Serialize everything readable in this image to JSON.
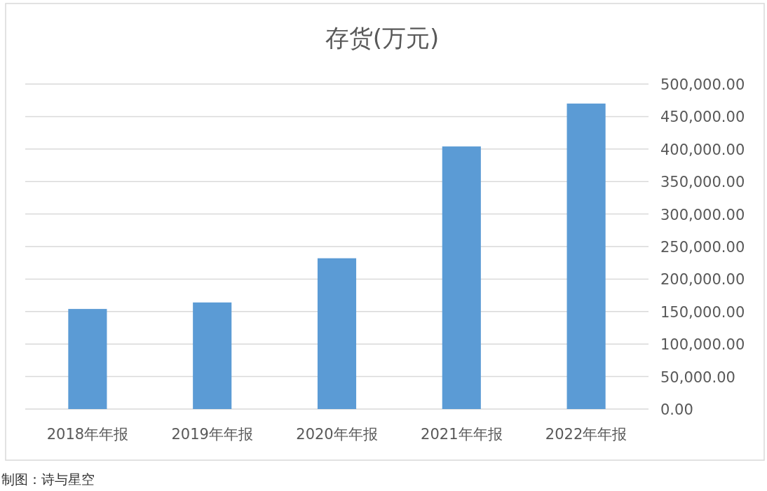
{
  "chart_data": {
    "type": "bar",
    "title": "存货(万元)",
    "categories": [
      "2018年年报",
      "2019年年报",
      "2020年年报",
      "2021年年报",
      "2022年年报"
    ],
    "values": [
      154000,
      164000,
      232000,
      404000,
      470000
    ],
    "color": "#5b9bd5",
    "ylim": [
      0,
      500000
    ],
    "yticks": [
      {
        "value": 0,
        "label": "0.00"
      },
      {
        "value": 50000,
        "label": "50,000.00"
      },
      {
        "value": 100000,
        "label": "100,000.00"
      },
      {
        "value": 150000,
        "label": "150,000.00"
      },
      {
        "value": 200000,
        "label": "200,000.00"
      },
      {
        "value": 250000,
        "label": "250,000.00"
      },
      {
        "value": 300000,
        "label": "300,000.00"
      },
      {
        "value": 350000,
        "label": "350,000.00"
      },
      {
        "value": 400000,
        "label": "400,000.00"
      },
      {
        "value": 450000,
        "label": "450,000.00"
      },
      {
        "value": 500000,
        "label": "500,000.00"
      }
    ],
    "grid": "y",
    "annotations": [
      "制图：诗与星空"
    ]
  }
}
